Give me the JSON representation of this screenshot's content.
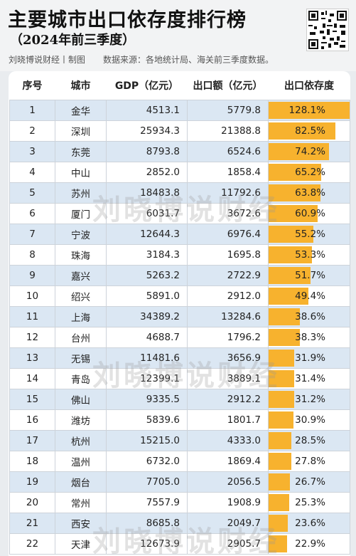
{
  "header": {
    "title": "主要城市出口依存度排行榜",
    "subtitle": "（2024年前三季度）",
    "credit": "刘晓博说财经丨制图",
    "source": "数据来源：各地统计局、海关前三季度数据。"
  },
  "watermark": "刘晓博说财经",
  "colors": {
    "bar": "#f7b22e",
    "row_alt": "#dbe7f3",
    "background": "#e9ecef"
  },
  "chart_data": {
    "type": "table",
    "columns": [
      "序号",
      "城市",
      "GDP（亿元）",
      "出口额（亿元）",
      "出口依存度"
    ],
    "rows": [
      {
        "rank": "1",
        "city": "金华",
        "gdp": "4513.1",
        "export": "5779.8",
        "ratio": "128.1%",
        "value": 128.1
      },
      {
        "rank": "2",
        "city": "深圳",
        "gdp": "25934.3",
        "export": "21388.8",
        "ratio": "82.5%",
        "value": 82.5
      },
      {
        "rank": "3",
        "city": "东莞",
        "gdp": "8793.8",
        "export": "6524.6",
        "ratio": "74.2%",
        "value": 74.2
      },
      {
        "rank": "4",
        "city": "中山",
        "gdp": "2852.0",
        "export": "1858.4",
        "ratio": "65.2%",
        "value": 65.2
      },
      {
        "rank": "5",
        "city": "苏州",
        "gdp": "18483.8",
        "export": "11792.6",
        "ratio": "63.8%",
        "value": 63.8
      },
      {
        "rank": "6",
        "city": "厦门",
        "gdp": "6031.7",
        "export": "3672.6",
        "ratio": "60.9%",
        "value": 60.9
      },
      {
        "rank": "7",
        "city": "宁波",
        "gdp": "12644.3",
        "export": "6976.4",
        "ratio": "55.2%",
        "value": 55.2
      },
      {
        "rank": "8",
        "city": "珠海",
        "gdp": "3184.3",
        "export": "1695.8",
        "ratio": "53.3%",
        "value": 53.3
      },
      {
        "rank": "9",
        "city": "嘉兴",
        "gdp": "5263.2",
        "export": "2722.9",
        "ratio": "51.7%",
        "value": 51.7
      },
      {
        "rank": "10",
        "city": "绍兴",
        "gdp": "5891.0",
        "export": "2912.0",
        "ratio": "49.4%",
        "value": 49.4
      },
      {
        "rank": "11",
        "city": "上海",
        "gdp": "34389.2",
        "export": "13284.6",
        "ratio": "38.6%",
        "value": 38.6
      },
      {
        "rank": "12",
        "city": "台州",
        "gdp": "4688.7",
        "export": "1796.2",
        "ratio": "38.3%",
        "value": 38.3
      },
      {
        "rank": "13",
        "city": "无锡",
        "gdp": "11481.6",
        "export": "3656.9",
        "ratio": "31.9%",
        "value": 31.9
      },
      {
        "rank": "14",
        "city": "青岛",
        "gdp": "12399.1",
        "export": "3889.1",
        "ratio": "31.4%",
        "value": 31.4
      },
      {
        "rank": "15",
        "city": "佛山",
        "gdp": "9335.5",
        "export": "2912.2",
        "ratio": "31.2%",
        "value": 31.2
      },
      {
        "rank": "16",
        "city": "潍坊",
        "gdp": "5839.6",
        "export": "1801.7",
        "ratio": "30.9%",
        "value": 30.9
      },
      {
        "rank": "17",
        "city": "杭州",
        "gdp": "15215.0",
        "export": "4333.0",
        "ratio": "28.5%",
        "value": 28.5
      },
      {
        "rank": "18",
        "city": "温州",
        "gdp": "6732.0",
        "export": "1869.4",
        "ratio": "27.8%",
        "value": 27.8
      },
      {
        "rank": "19",
        "city": "烟台",
        "gdp": "7705.0",
        "export": "2056.5",
        "ratio": "26.7%",
        "value": 26.7
      },
      {
        "rank": "20",
        "city": "常州",
        "gdp": "7557.9",
        "export": "1908.9",
        "ratio": "25.3%",
        "value": 25.3
      },
      {
        "rank": "21",
        "city": "西安",
        "gdp": "8685.8",
        "export": "2049.7",
        "ratio": "23.6%",
        "value": 23.6
      },
      {
        "rank": "22",
        "city": "天津",
        "gdp": "12673.9",
        "export": "2905.7",
        "ratio": "22.9%",
        "value": 22.9
      }
    ]
  }
}
